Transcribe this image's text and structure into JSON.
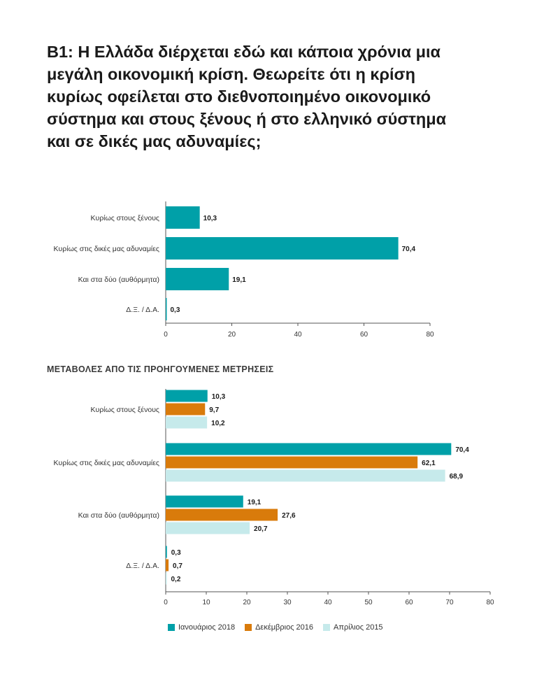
{
  "title": "Β1: Η Ελλάδα διέρχεται εδώ και κάποια χρόνια μια μεγάλη οικονομική κρίση. Θεωρείτε ότι η κρίση κυρίως οφείλεται στο διεθνοποιημένο οικονομικό σύστημα και στους ξένους ή στο ελληνικό σύστημα και σε δικές μας αδυναμίες;",
  "subtitle": "ΜΕΤΑΒΟΛΕΣ ΑΠΟ ΤΙΣ ΠΡΟΗΓΟΥΜΕΝΕΣ ΜΕΤΡΗΣΕΙΣ",
  "colors": {
    "jan2018": "#00A0A8",
    "dec2016": "#D97B0B",
    "apr2015": "#C6EAEB",
    "axis": "#555555"
  },
  "chart_data": [
    {
      "type": "bar",
      "orientation": "horizontal",
      "categories": [
        "Κυρίως στους ξένους",
        "Κυρίως στις δικές μας αδυναμίες",
        "Και στα δύο (αυθόρμητα)",
        "Δ.Ξ. / Δ.Α."
      ],
      "values": [
        10.3,
        70.4,
        19.1,
        0.3
      ],
      "value_labels": [
        "10,3",
        "70,4",
        "19,1",
        "0,3"
      ],
      "xlim": [
        0,
        80
      ],
      "xticks": [
        0,
        20,
        40,
        60,
        80
      ]
    },
    {
      "type": "bar",
      "orientation": "horizontal",
      "title": "ΜΕΤΑΒΟΛΕΣ ΑΠΟ ΤΙΣ ΠΡΟΗΓΟΥΜΕΝΕΣ ΜΕΤΡΗΣΕΙΣ",
      "categories": [
        "Κυρίως στους ξένους",
        "Κυρίως στις δικές μας αδυναμίες",
        "Και στα δύο (αυθόρμητα)",
        "Δ.Ξ. / Δ.Α."
      ],
      "series": [
        {
          "name": "Ιανουάριος 2018",
          "color": "#00A0A8",
          "values": [
            10.3,
            70.4,
            19.1,
            0.3
          ],
          "value_labels": [
            "10,3",
            "70,4",
            "19,1",
            "0,3"
          ]
        },
        {
          "name": "Δεκέμβριος 2016",
          "color": "#D97B0B",
          "values": [
            9.7,
            62.1,
            27.6,
            0.7
          ],
          "value_labels": [
            "9,7",
            "62,1",
            "27,6",
            "0,7"
          ]
        },
        {
          "name": "Απρίλιος 2015",
          "color": "#C6EAEB",
          "values": [
            10.2,
            68.9,
            20.7,
            0.2
          ],
          "value_labels": [
            "10,2",
            "68,9",
            "20,7",
            "0,2"
          ]
        }
      ],
      "xlim": [
        0,
        80
      ],
      "xticks": [
        0,
        10,
        20,
        30,
        40,
        50,
        60,
        70,
        80
      ],
      "legend_position": "bottom"
    }
  ]
}
